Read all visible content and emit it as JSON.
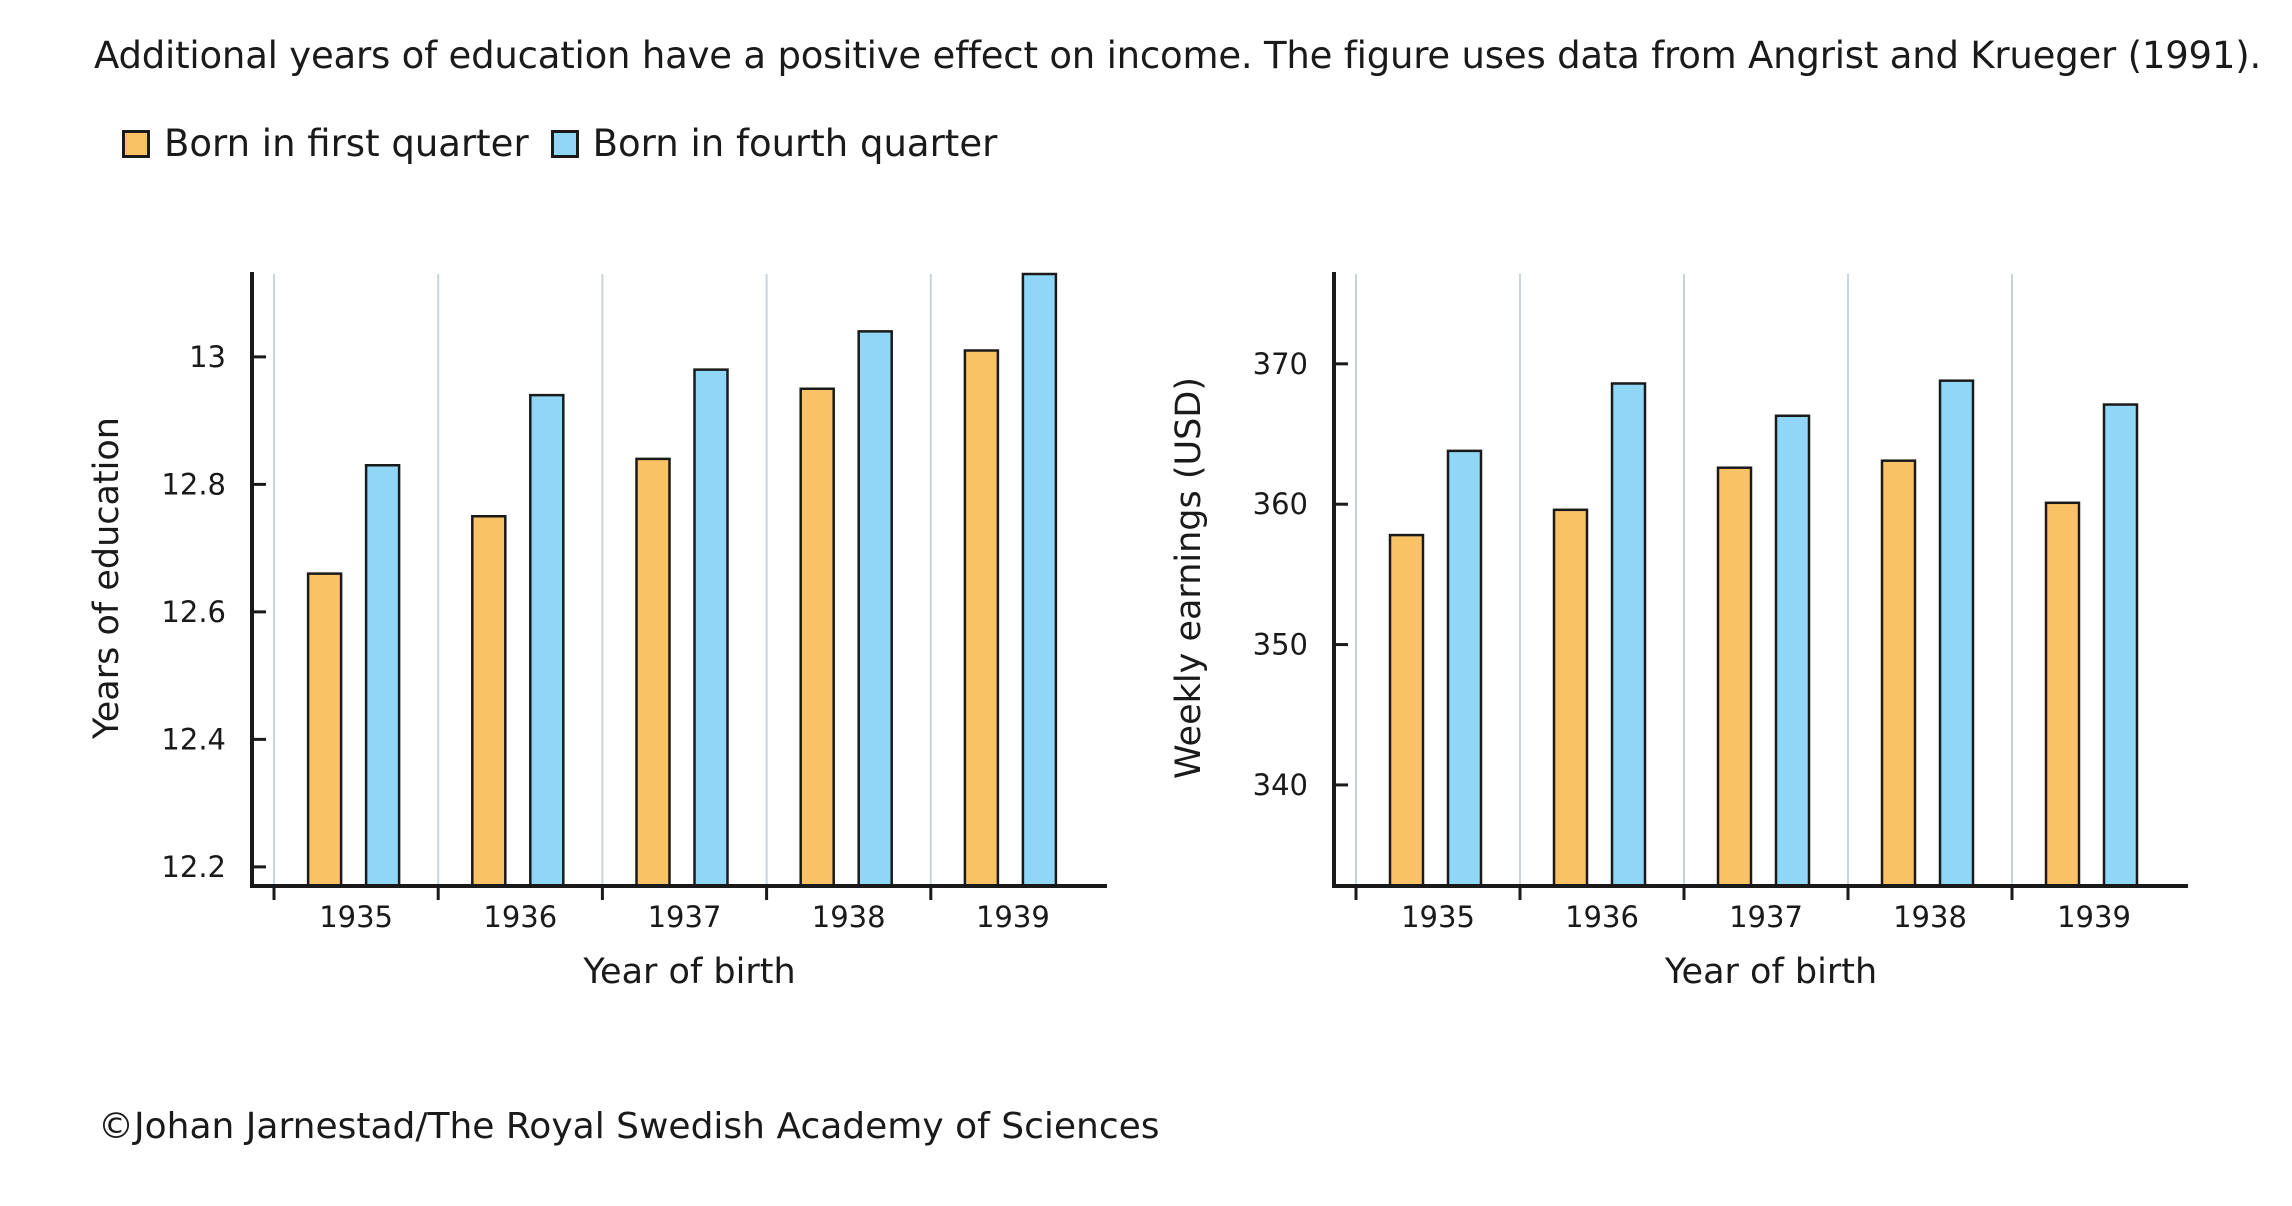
{
  "caption": "Additional years of education have a positive effect on income. The figure uses data from Angrist and Krueger (1991).",
  "legend": {
    "items": [
      {
        "label": "Born in first quarter",
        "color": "#f9c264"
      },
      {
        "label": "Born in fourth quarter",
        "color": "#90d6f7"
      }
    ]
  },
  "credit": "©Johan Jarnestad/The Royal Swedish Academy of Sciences",
  "chart_data": [
    {
      "type": "bar",
      "categories": [
        "1935",
        "1936",
        "1937",
        "1938",
        "1939"
      ],
      "series": [
        {
          "name": "Born in first quarter",
          "values": [
            12.66,
            12.75,
            12.84,
            12.95,
            13.01
          ]
        },
        {
          "name": "Born in fourth quarter",
          "values": [
            12.83,
            12.94,
            12.98,
            13.04,
            13.13
          ]
        }
      ],
      "title": "",
      "xlabel": "Year of birth",
      "ylabel": "Years of education",
      "ylim": [
        12.17,
        13.13
      ],
      "yticks": [
        12.2,
        12.4,
        12.6,
        12.8,
        13
      ],
      "ytick_labels": [
        "12.2",
        "12.4",
        "12.6",
        "12.8",
        "13"
      ],
      "grid": "vertical separators"
    },
    {
      "type": "bar",
      "categories": [
        "1935",
        "1936",
        "1937",
        "1938",
        "1939"
      ],
      "series": [
        {
          "name": "Born in first quarter",
          "values": [
            357.8,
            359.6,
            362.6,
            363.1,
            360.1
          ]
        },
        {
          "name": "Born in fourth quarter",
          "values": [
            363.8,
            368.6,
            366.3,
            368.8,
            367.1
          ]
        }
      ],
      "title": "",
      "xlabel": "Year of birth",
      "ylabel": "Weekly earnings (USD)",
      "ylim": [
        332.8,
        376.4
      ],
      "yticks": [
        340,
        350,
        360,
        370
      ],
      "ytick_labels": [
        "340",
        "350",
        "360",
        "370"
      ],
      "grid": "vertical separators"
    }
  ]
}
